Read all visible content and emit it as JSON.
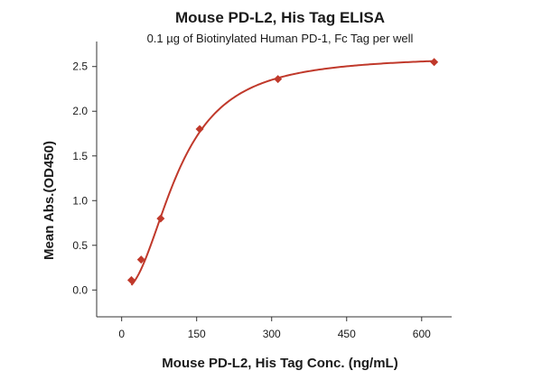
{
  "chart_data": {
    "type": "scatter",
    "title": "Mouse PD-L2, His Tag ELISA",
    "subtitle": "0.1 µg of Biotinylated Human PD-1, Fc Tag per well",
    "xlabel": "Mouse PD-L2, His Tag Conc. (ng/mL)",
    "ylabel": "Mean Abs.(OD450)",
    "xlim": [
      -50,
      660
    ],
    "ylim": [
      -0.3,
      2.78
    ],
    "xticks": [
      0,
      150,
      300,
      450,
      600
    ],
    "yticks": [
      0.0,
      0.5,
      1.0,
      1.5,
      2.0,
      2.5
    ],
    "ytick_labels": [
      "0.0",
      "0.5",
      "1.0",
      "1.5",
      "2.0",
      "2.5"
    ],
    "grid": false,
    "series": [
      {
        "points": [
          {
            "x": 19.5,
            "y": 0.11
          },
          {
            "x": 39,
            "y": 0.34
          },
          {
            "x": 78,
            "y": 0.8
          },
          {
            "x": 156,
            "y": 1.8
          },
          {
            "x": 312.5,
            "y": 2.36
          },
          {
            "x": 625,
            "y": 2.55
          }
        ],
        "fit": {
          "model": "4PL",
          "bottom": 0.0,
          "top": 2.62,
          "ec50": 112,
          "hill": 2.2
        },
        "color": "#c0392b"
      }
    ]
  }
}
